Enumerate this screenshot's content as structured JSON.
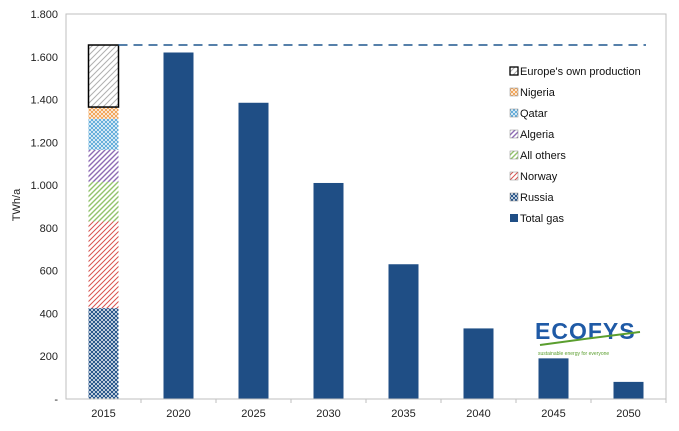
{
  "chart_data": {
    "type": "bar",
    "ylabel": "TWh/a",
    "ylim": [
      0,
      1800
    ],
    "y_ticks": [
      "-",
      "200",
      "400",
      "600",
      "800",
      "1.000",
      "1.200",
      "1.400",
      "1.600",
      "1.800"
    ],
    "categories": [
      "2015",
      "2020",
      "2025",
      "2030",
      "2035",
      "2040",
      "2045",
      "2050"
    ],
    "total_gas": {
      "name": "Total gas",
      "color": "#1f4e85",
      "values": [
        null,
        1620,
        1385,
        1010,
        630,
        330,
        190,
        80
      ]
    },
    "stack_2015": [
      {
        "name": "Russia",
        "value": 425,
        "color": "#1f4e85",
        "pattern": "crosshatch"
      },
      {
        "name": "Norway",
        "value": 405,
        "color": "#d9534f",
        "pattern": "diagonal"
      },
      {
        "name": "All others",
        "value": 185,
        "color": "#92c36b",
        "pattern": "diagonal"
      },
      {
        "name": "Algeria",
        "value": 150,
        "color": "#8e6bb5",
        "pattern": "diagonal"
      },
      {
        "name": "Qatar",
        "value": 145,
        "color": "#5aa8d8",
        "pattern": "crosshatch"
      },
      {
        "name": "Nigeria",
        "value": 55,
        "color": "#f0a050",
        "pattern": "crosshatch"
      },
      {
        "name": "Europe's own production",
        "value": 290,
        "color": "#999999",
        "pattern": "diagonal-outline"
      }
    ],
    "reference_line": {
      "value": 1655,
      "style": "dashed",
      "color": "#3e6f9e"
    },
    "legend": {
      "placement": "right",
      "entries": [
        {
          "label": "Europe's own production",
          "series": "Europe's own production"
        },
        {
          "label": "Nigeria",
          "series": "Nigeria"
        },
        {
          "label": "Qatar",
          "series": "Qatar"
        },
        {
          "label": "Algeria",
          "series": "Algeria"
        },
        {
          "label": "All others",
          "series": "All others"
        },
        {
          "label": "Norway",
          "series": "Norway"
        },
        {
          "label": "Russia",
          "series": "Russia"
        },
        {
          "label": "Total gas",
          "series": "Total gas"
        }
      ]
    },
    "grid": false
  },
  "logo": {
    "name": "ECOFYS",
    "tagline": "sustainable energy for everyone"
  }
}
